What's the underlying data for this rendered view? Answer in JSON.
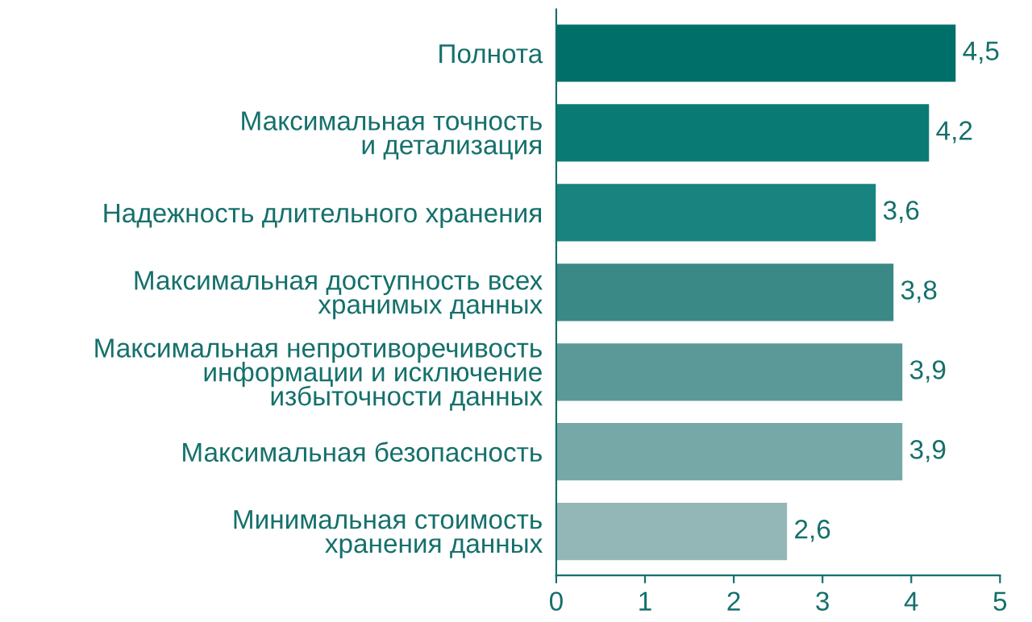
{
  "chart_data": {
    "type": "bar",
    "orientation": "horizontal",
    "categories": [
      "Полнота",
      "Максимальная точность\nи детализация",
      "Надежность длительного хранения",
      "Максимальная доступность всех\nхранимых данных",
      "Максимальная непротиворечивость\nинформации и исключение\nизбыточности данных",
      "Максимальная безопасность",
      "Минимальная стоимость\nхранения данных"
    ],
    "values": [
      4.5,
      4.2,
      3.6,
      3.8,
      3.9,
      3.9,
      2.6
    ],
    "value_labels": [
      "4,5",
      "4,2",
      "3,6",
      "3,8",
      "3,9",
      "3,9",
      "2,6"
    ],
    "colors": [
      "#006e69",
      "#0a7a74",
      "#18837f",
      "#3a8987",
      "#5a9998",
      "#76a8a7",
      "#93b7b7"
    ],
    "xlim": [
      0,
      5
    ],
    "xticks": [
      0,
      1,
      2,
      3,
      4,
      5
    ],
    "grid": false,
    "legend": false
  }
}
